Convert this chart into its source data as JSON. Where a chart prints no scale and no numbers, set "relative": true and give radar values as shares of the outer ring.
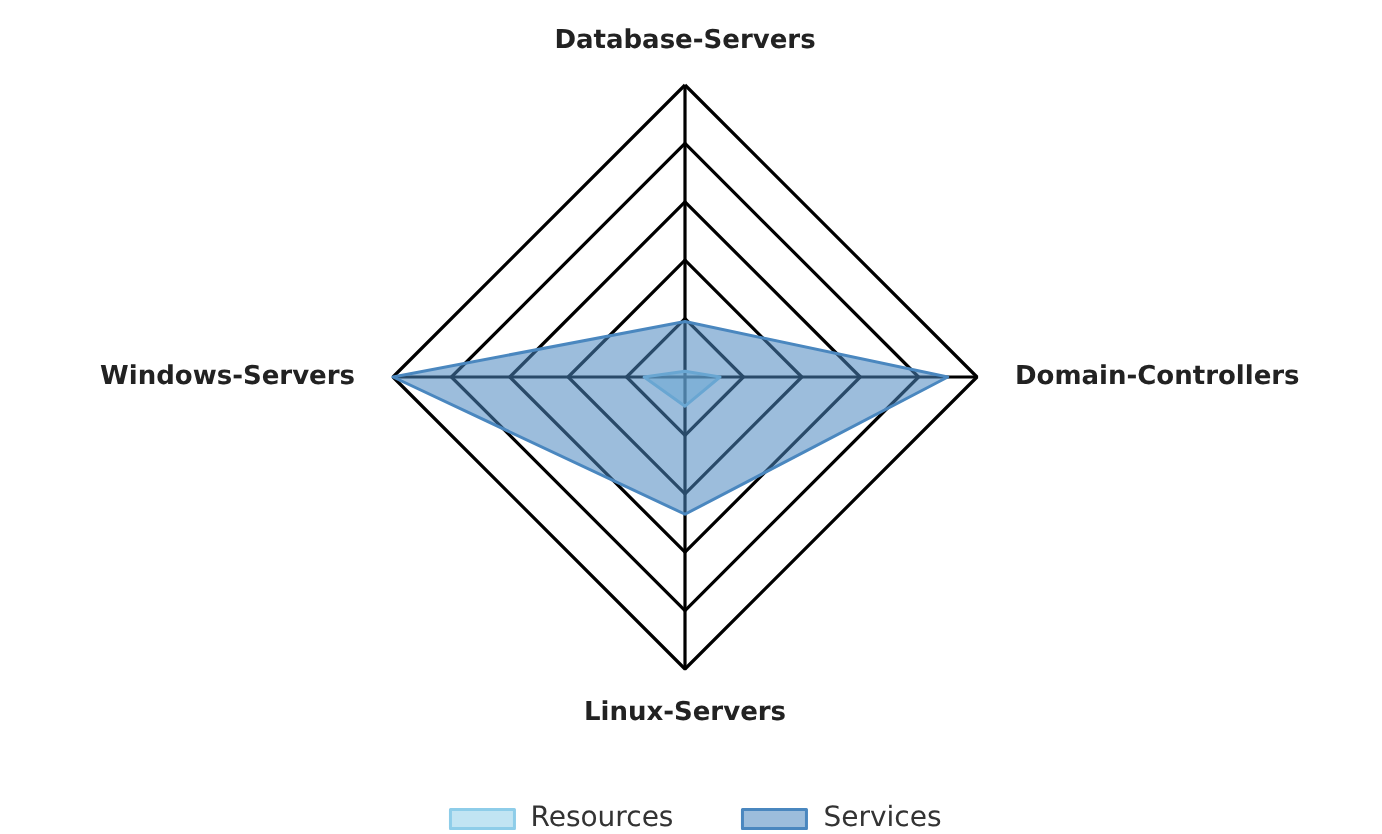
{
  "chart_data": {
    "type": "radar",
    "relative": true,
    "categories": [
      "Database-Servers",
      "Domain-Controllers",
      "Linux-Servers",
      "Windows-Servers"
    ],
    "series": [
      {
        "name": "Resources",
        "color": "#8ecde9",
        "values": [
          0.02,
          0.12,
          0.1,
          0.14
        ]
      },
      {
        "name": "Services",
        "color": "#4a87bf",
        "values": [
          0.19,
          0.9,
          0.47,
          1.0
        ]
      }
    ],
    "legend": "bottom"
  }
}
